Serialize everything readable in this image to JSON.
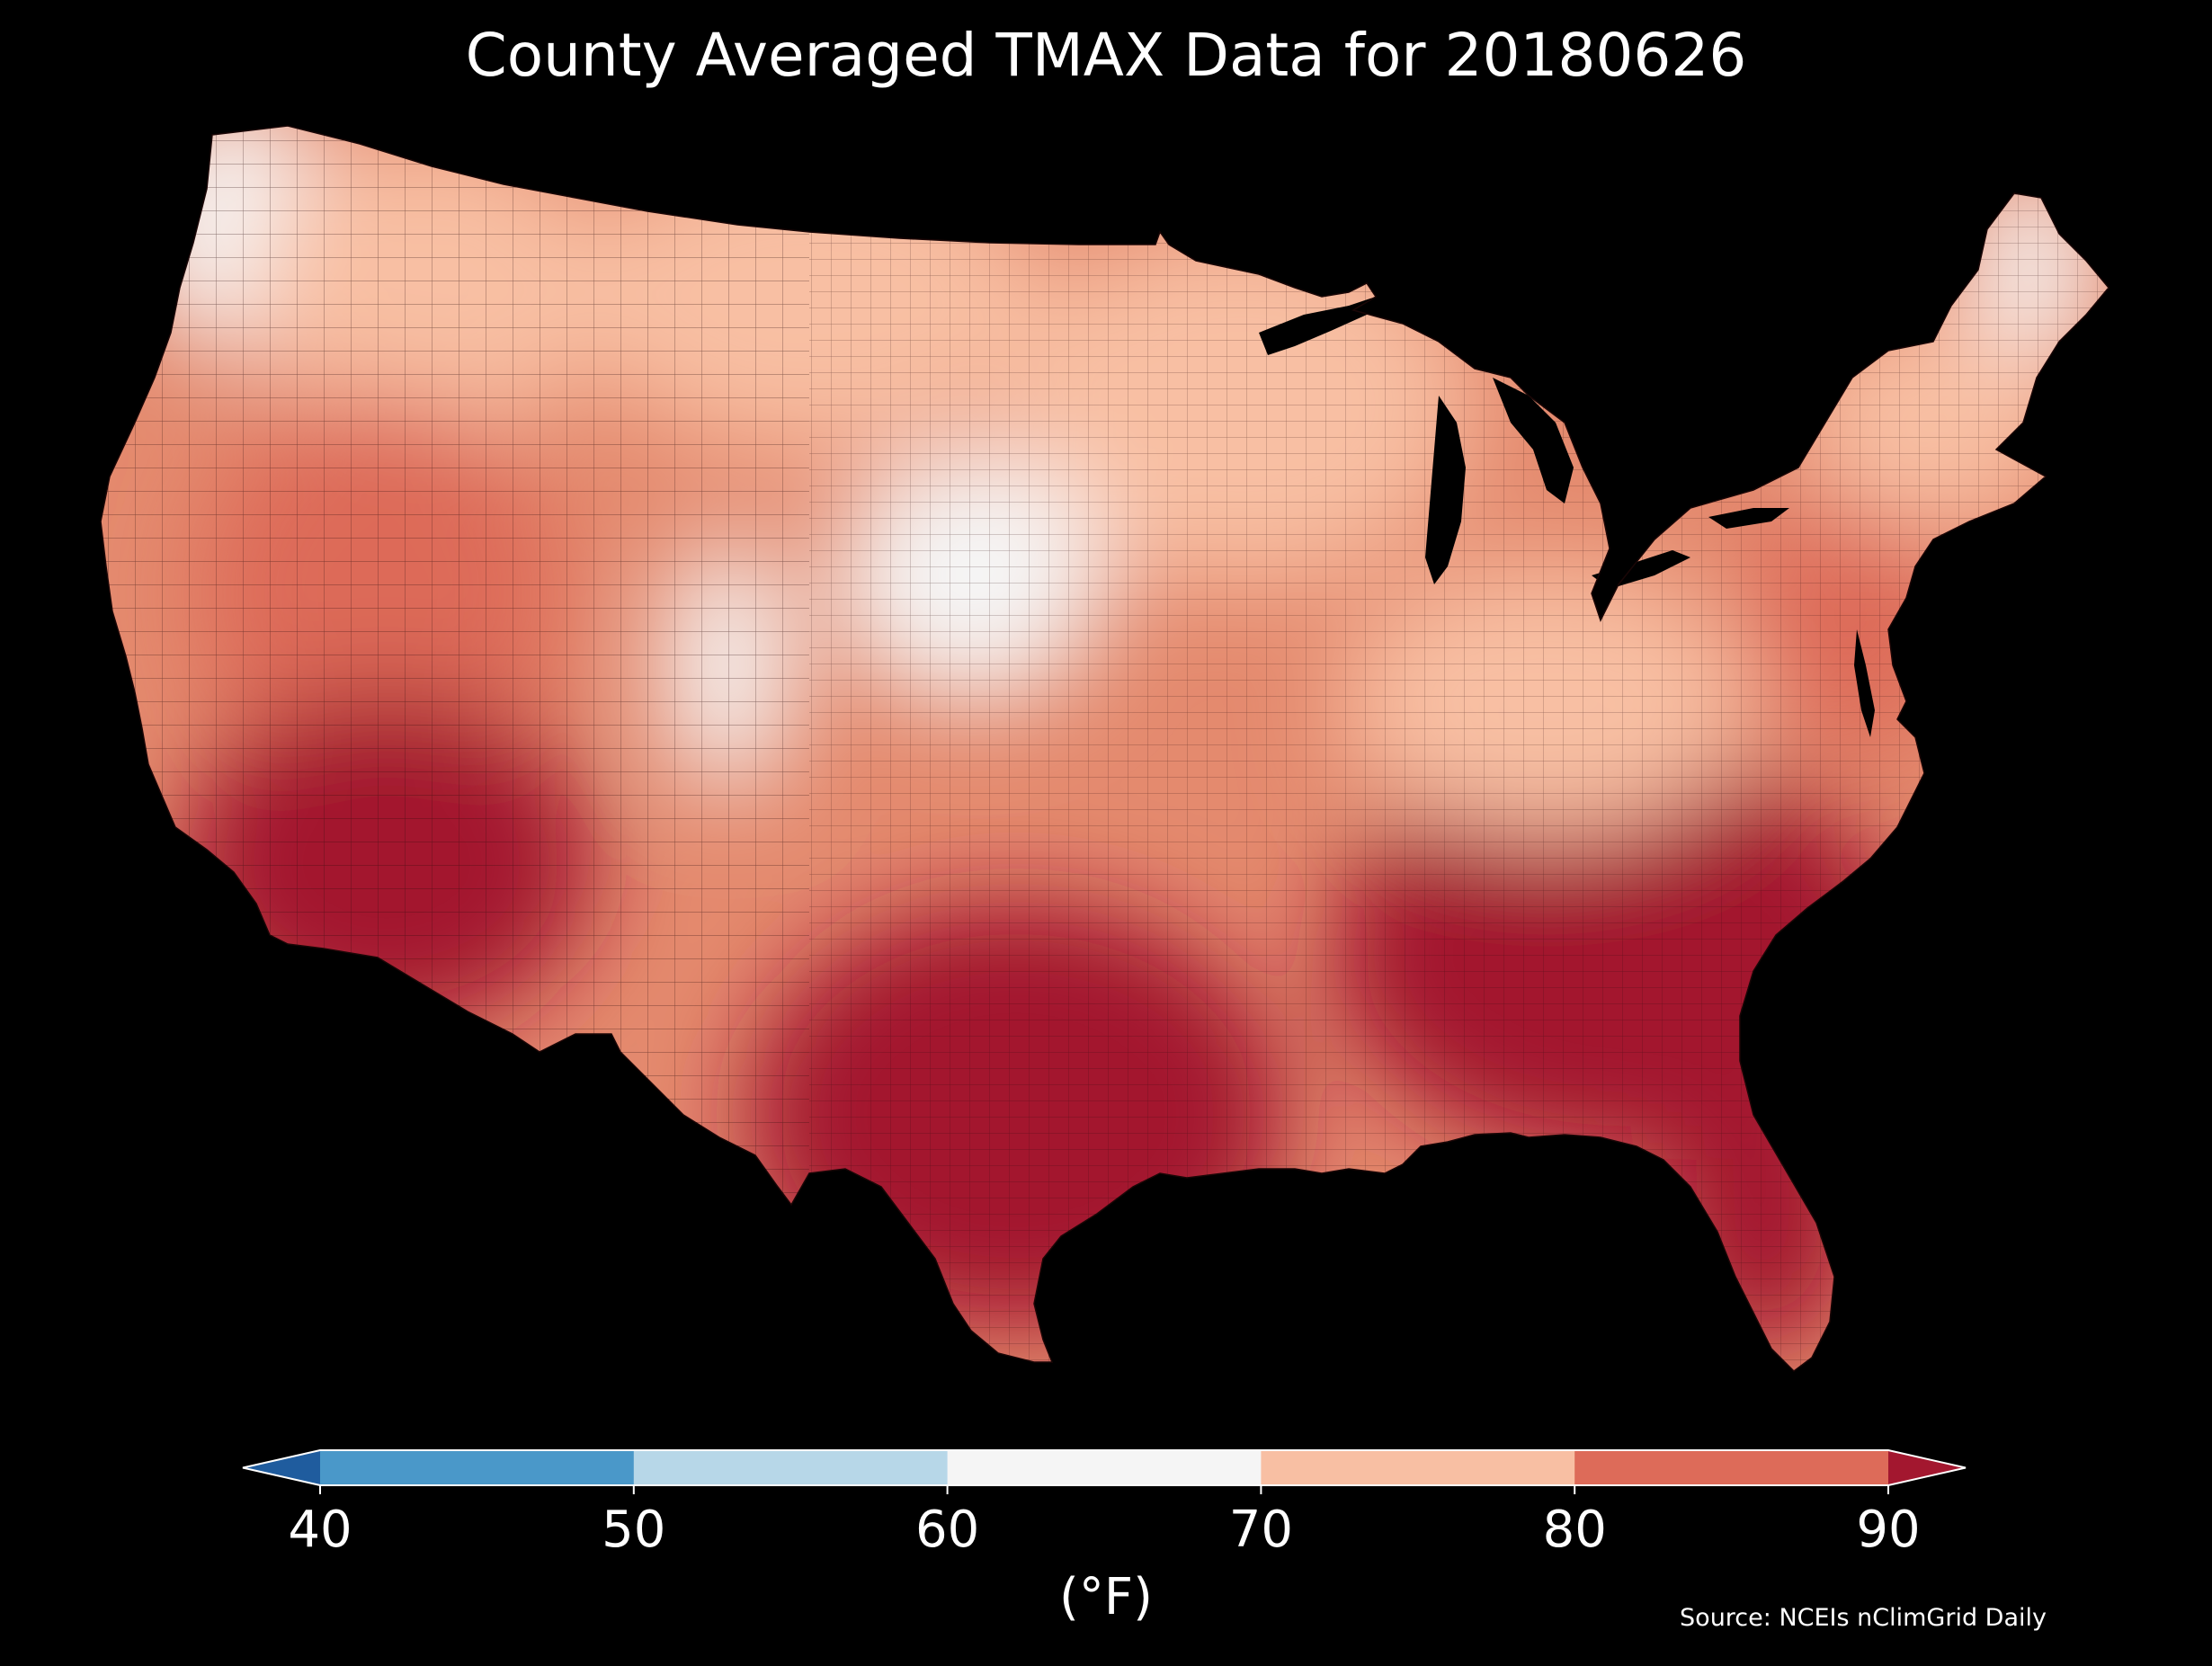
{
  "title": "County Averaged TMAX Data for 20180626",
  "source": "Source: NCEIs nClimGrid Daily",
  "colorbar": {
    "label": "(°F)",
    "ticks": [
      "40",
      "50",
      "60",
      "70",
      "80",
      "90"
    ],
    "extend": "both",
    "bins": [
      {
        "range": "<40",
        "color": "#1f5c9e"
      },
      {
        "range": "40-50",
        "color": "#4a98c9"
      },
      {
        "range": "50-60",
        "color": "#b7d7e8"
      },
      {
        "range": "60-70",
        "color": "#f5f5f5"
      },
      {
        "range": "70-80",
        "color": "#f8bfa3"
      },
      {
        "range": "80-90",
        "color": "#dd6b59"
      },
      {
        "range": ">90",
        "color": "#a3172f"
      }
    ]
  },
  "map": {
    "region": "contiguous United States",
    "feature": "county polygons",
    "background": "#000000",
    "regional_levels": [
      {
        "region": "Pacific Northwest coast",
        "tmax_f": 60
      },
      {
        "region": "Northern Maine",
        "tmax_f": 62
      },
      {
        "region": "Northern Rockies",
        "tmax_f": 72
      },
      {
        "region": "Northern Plains",
        "tmax_f": 79
      },
      {
        "region": "Upper Midwest",
        "tmax_f": 75
      },
      {
        "region": "Nebraska / South Dakota",
        "tmax_f": 66
      },
      {
        "region": "Colorado Front Range",
        "tmax_f": 65
      },
      {
        "region": "Great Basin",
        "tmax_f": 88
      },
      {
        "region": "Desert Southwest",
        "tmax_f": 100
      },
      {
        "region": "Texas",
        "tmax_f": 93
      },
      {
        "region": "Southeast",
        "tmax_f": 92
      },
      {
        "region": "Mid-Atlantic",
        "tmax_f": 82
      },
      {
        "region": "Ohio Valley",
        "tmax_f": 78
      },
      {
        "region": "New England",
        "tmax_f": 70
      },
      {
        "region": "Florida",
        "tmax_f": 90
      }
    ]
  }
}
